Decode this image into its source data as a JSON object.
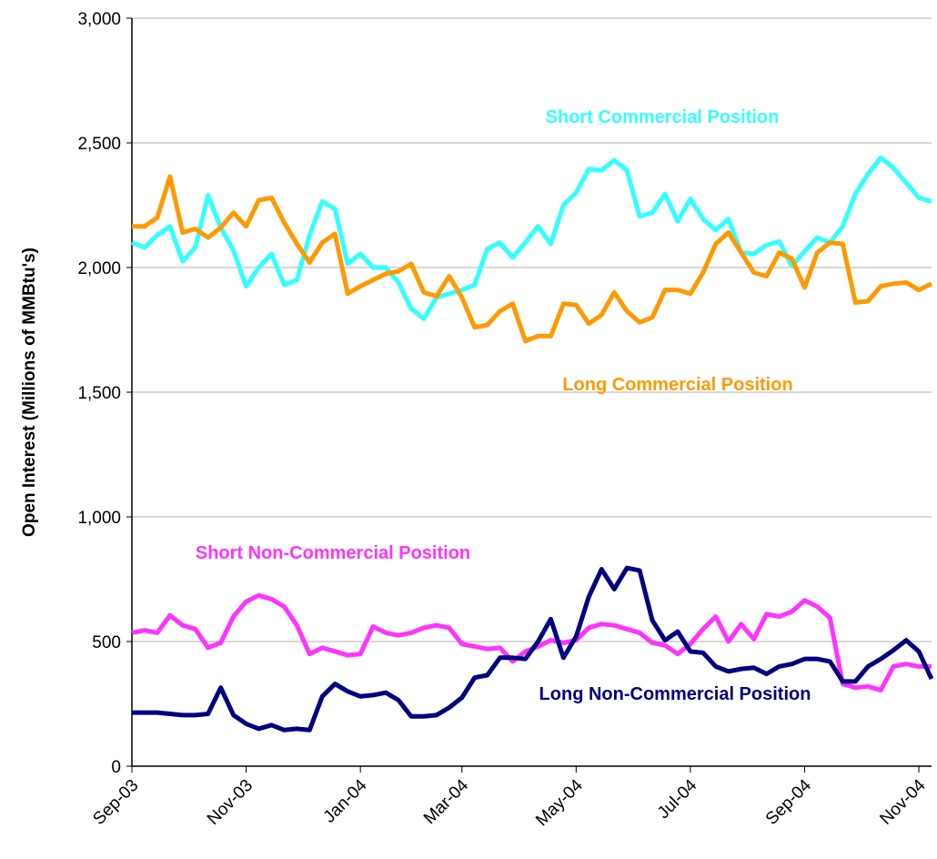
{
  "chart_data": {
    "type": "line",
    "y_label": "Open Interest (Millions of MMBtu's)",
    "categories": [
      "Sep-03",
      null,
      null,
      null,
      null,
      null,
      null,
      null,
      null,
      "Nov-03",
      null,
      null,
      null,
      null,
      null,
      null,
      null,
      null,
      "Jan-04",
      null,
      null,
      null,
      null,
      null,
      null,
      null,
      "Mar-04",
      null,
      null,
      null,
      null,
      null,
      null,
      null,
      null,
      "May-04",
      null,
      null,
      null,
      null,
      null,
      null,
      null,
      null,
      "Jul-04",
      null,
      null,
      null,
      null,
      null,
      null,
      null,
      null,
      "Sep-04",
      null,
      null,
      null,
      null,
      null,
      null,
      null,
      null,
      "Nov-04",
      null
    ],
    "series": [
      {
        "name": "Short Commercial Position",
        "color": "#33ffff",
        "values": [
          2100,
          2080,
          2130,
          2165,
          2025,
          2080,
          2290,
          2160,
          2070,
          1925,
          2000,
          2055,
          1930,
          1950,
          2130,
          2265,
          2235,
          2015,
          2055,
          2000,
          2000,
          1940,
          1835,
          1795,
          1880,
          1895,
          1910,
          1930,
          2075,
          2100,
          2040,
          2100,
          2165,
          2095,
          2250,
          2300,
          2395,
          2390,
          2430,
          2390,
          2205,
          2220,
          2295,
          2185,
          2275,
          2195,
          2150,
          2195,
          2060,
          2055,
          2090,
          2105,
          2005,
          2065,
          2120,
          2100,
          2165,
          2295,
          2375,
          2440,
          2400,
          2340,
          2280,
          2265
        ]
      },
      {
        "name": "Long Commercial Position",
        "color": "#ff9900",
        "values": [
          2165,
          2165,
          2200,
          2365,
          2140,
          2155,
          2120,
          2160,
          2220,
          2165,
          2270,
          2280,
          2180,
          2095,
          2020,
          2100,
          2135,
          1895,
          1925,
          1950,
          1975,
          1985,
          2015,
          1900,
          1885,
          1965,
          1880,
          1760,
          1770,
          1825,
          1855,
          1705,
          1725,
          1725,
          1855,
          1850,
          1775,
          1810,
          1900,
          1825,
          1780,
          1800,
          1910,
          1910,
          1895,
          1980,
          2095,
          2140,
          2060,
          1980,
          1965,
          2060,
          2035,
          1920,
          2060,
          2100,
          2095,
          1860,
          1865,
          1925,
          1935,
          1940,
          1910,
          1935
        ]
      },
      {
        "name": "Short Non-Commercial Position",
        "color": "#ff33ff",
        "values": [
          535,
          545,
          535,
          605,
          565,
          550,
          475,
          495,
          600,
          660,
          685,
          670,
          640,
          565,
          450,
          475,
          460,
          445,
          450,
          560,
          535,
          525,
          535,
          555,
          565,
          555,
          490,
          480,
          470,
          475,
          420,
          460,
          480,
          505,
          495,
          505,
          555,
          570,
          565,
          550,
          535,
          495,
          485,
          450,
          490,
          550,
          600,
          500,
          570,
          510,
          610,
          600,
          620,
          665,
          640,
          595,
          330,
          315,
          320,
          305,
          400,
          410,
          400,
          400
        ]
      },
      {
        "name": "Long Non-Commercial Position",
        "color": "#000080",
        "values": [
          215,
          215,
          215,
          210,
          205,
          205,
          210,
          315,
          205,
          170,
          150,
          165,
          145,
          150,
          145,
          280,
          330,
          300,
          280,
          285,
          295,
          265,
          200,
          200,
          205,
          235,
          275,
          355,
          365,
          435,
          435,
          430,
          500,
          590,
          435,
          520,
          680,
          790,
          710,
          795,
          785,
          585,
          505,
          540,
          460,
          455,
          400,
          380,
          390,
          395,
          370,
          400,
          410,
          430,
          430,
          420,
          340,
          340,
          400,
          430,
          465,
          505,
          460,
          350
        ]
      }
    ],
    "ylim": [
      0,
      3000
    ],
    "yticks": [
      0,
      500,
      {
        "value": 1000,
        "label": "1,000"
      },
      {
        "value": 1500,
        "label": "1,500"
      },
      {
        "value": 2000,
        "label": "2,000"
      },
      {
        "value": 2500,
        "label": "2,500"
      },
      {
        "value": 3000,
        "label": "3,000"
      }
    ],
    "grid": true
  }
}
